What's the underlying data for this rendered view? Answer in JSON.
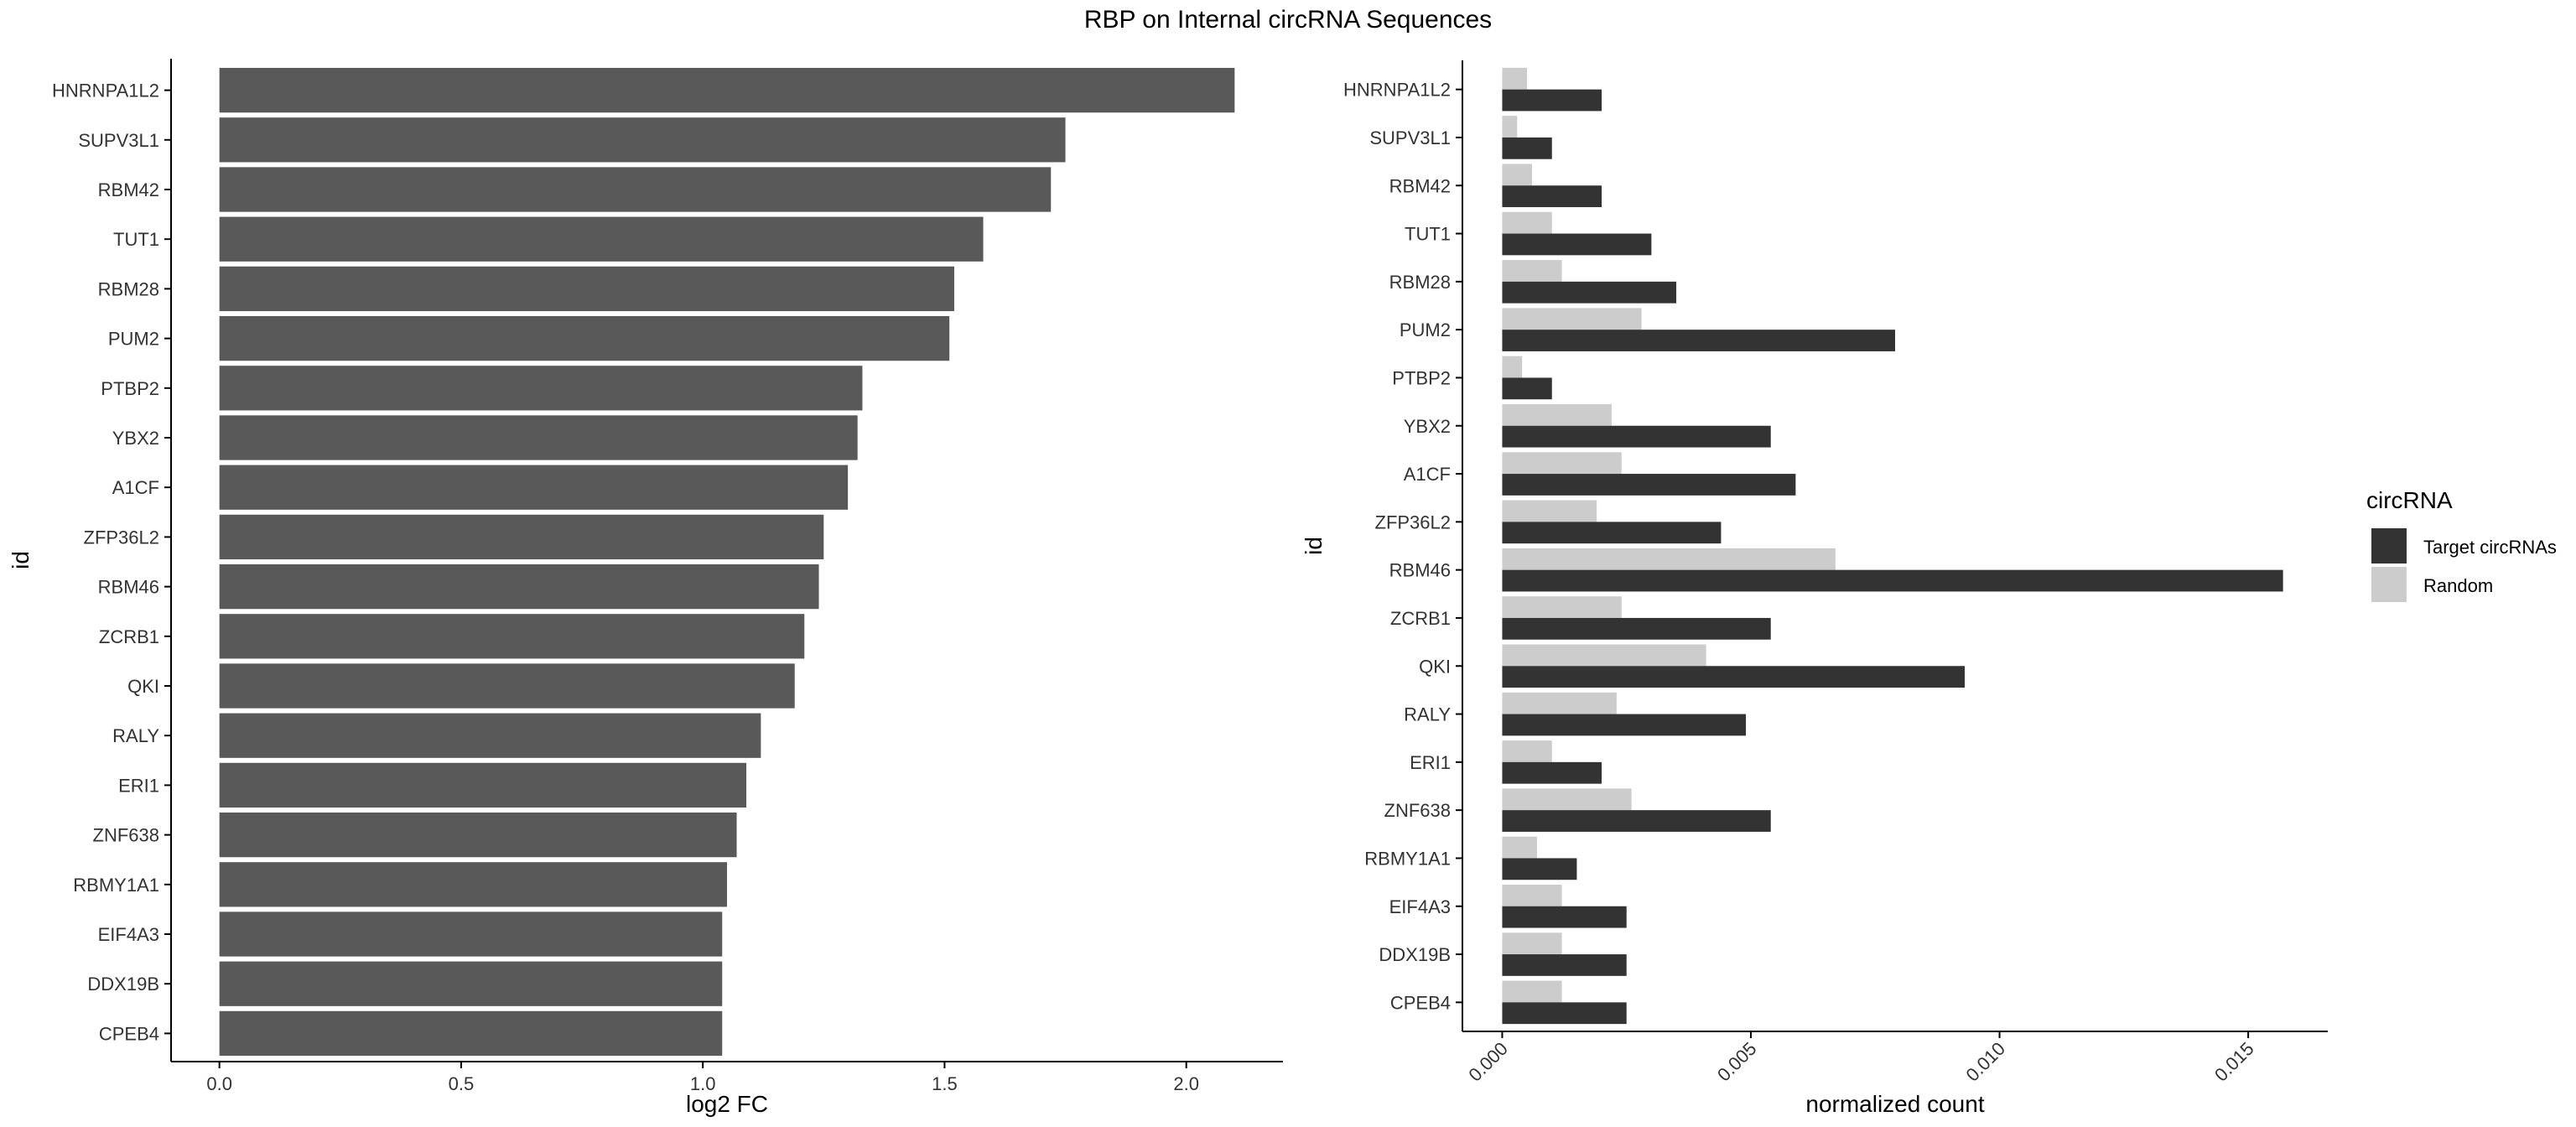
{
  "title": "RBP on Internal circRNA Sequences",
  "chart_data": [
    {
      "type": "bar",
      "orientation": "horizontal",
      "categories": [
        "HNRNPA1L2",
        "SUPV3L1",
        "RBM42",
        "TUT1",
        "RBM28",
        "PUM2",
        "PTBP2",
        "YBX2",
        "A1CF",
        "ZFP36L2",
        "RBM46",
        "ZCRB1",
        "QKI",
        "RALY",
        "ERI1",
        "ZNF638",
        "RBMY1A1",
        "EIF4A3",
        "DDX19B",
        "CPEB4"
      ],
      "values": [
        2.1,
        1.75,
        1.72,
        1.58,
        1.52,
        1.51,
        1.33,
        1.32,
        1.3,
        1.25,
        1.24,
        1.21,
        1.19,
        1.12,
        1.09,
        1.07,
        1.05,
        1.04,
        1.04,
        1.04
      ],
      "xlabel": "log2 FC",
      "ylabel": "id",
      "xlim": [
        -0.1,
        2.2
      ],
      "xticks": [
        "0.0",
        "0.5",
        "1.0",
        "1.5",
        "2.0"
      ],
      "bar_color": "#595959",
      "grid": false
    },
    {
      "type": "bar",
      "orientation": "horizontal",
      "categories": [
        "HNRNPA1L2",
        "SUPV3L1",
        "RBM42",
        "TUT1",
        "RBM28",
        "PUM2",
        "PTBP2",
        "YBX2",
        "A1CF",
        "ZFP36L2",
        "RBM46",
        "ZCRB1",
        "QKI",
        "RALY",
        "ERI1",
        "ZNF638",
        "RBMY1A1",
        "EIF4A3",
        "DDX19B",
        "CPEB4"
      ],
      "series": [
        {
          "name": "Target circRNAs",
          "color": "#333333",
          "values": [
            0.002,
            0.001,
            0.002,
            0.003,
            0.0035,
            0.0079,
            0.001,
            0.0054,
            0.0059,
            0.0044,
            0.0157,
            0.0054,
            0.0093,
            0.0049,
            0.002,
            0.0054,
            0.0015,
            0.0025,
            0.0025,
            0.0025
          ]
        },
        {
          "name": "Random",
          "color": "#cccccc",
          "values": [
            0.0005,
            0.0003,
            0.0006,
            0.001,
            0.0012,
            0.0028,
            0.0004,
            0.0022,
            0.0024,
            0.0019,
            0.0067,
            0.0024,
            0.0041,
            0.0023,
            0.001,
            0.0026,
            0.0007,
            0.0012,
            0.0012,
            0.0012
          ]
        }
      ],
      "xlabel": "normalized count",
      "ylabel": "id",
      "xlim": [
        -0.0008,
        0.0166
      ],
      "xticks": [
        "0.000",
        "0.005",
        "0.010",
        "0.015"
      ],
      "legend_title": "circRNA",
      "legend_position": "right",
      "grid": false
    }
  ]
}
